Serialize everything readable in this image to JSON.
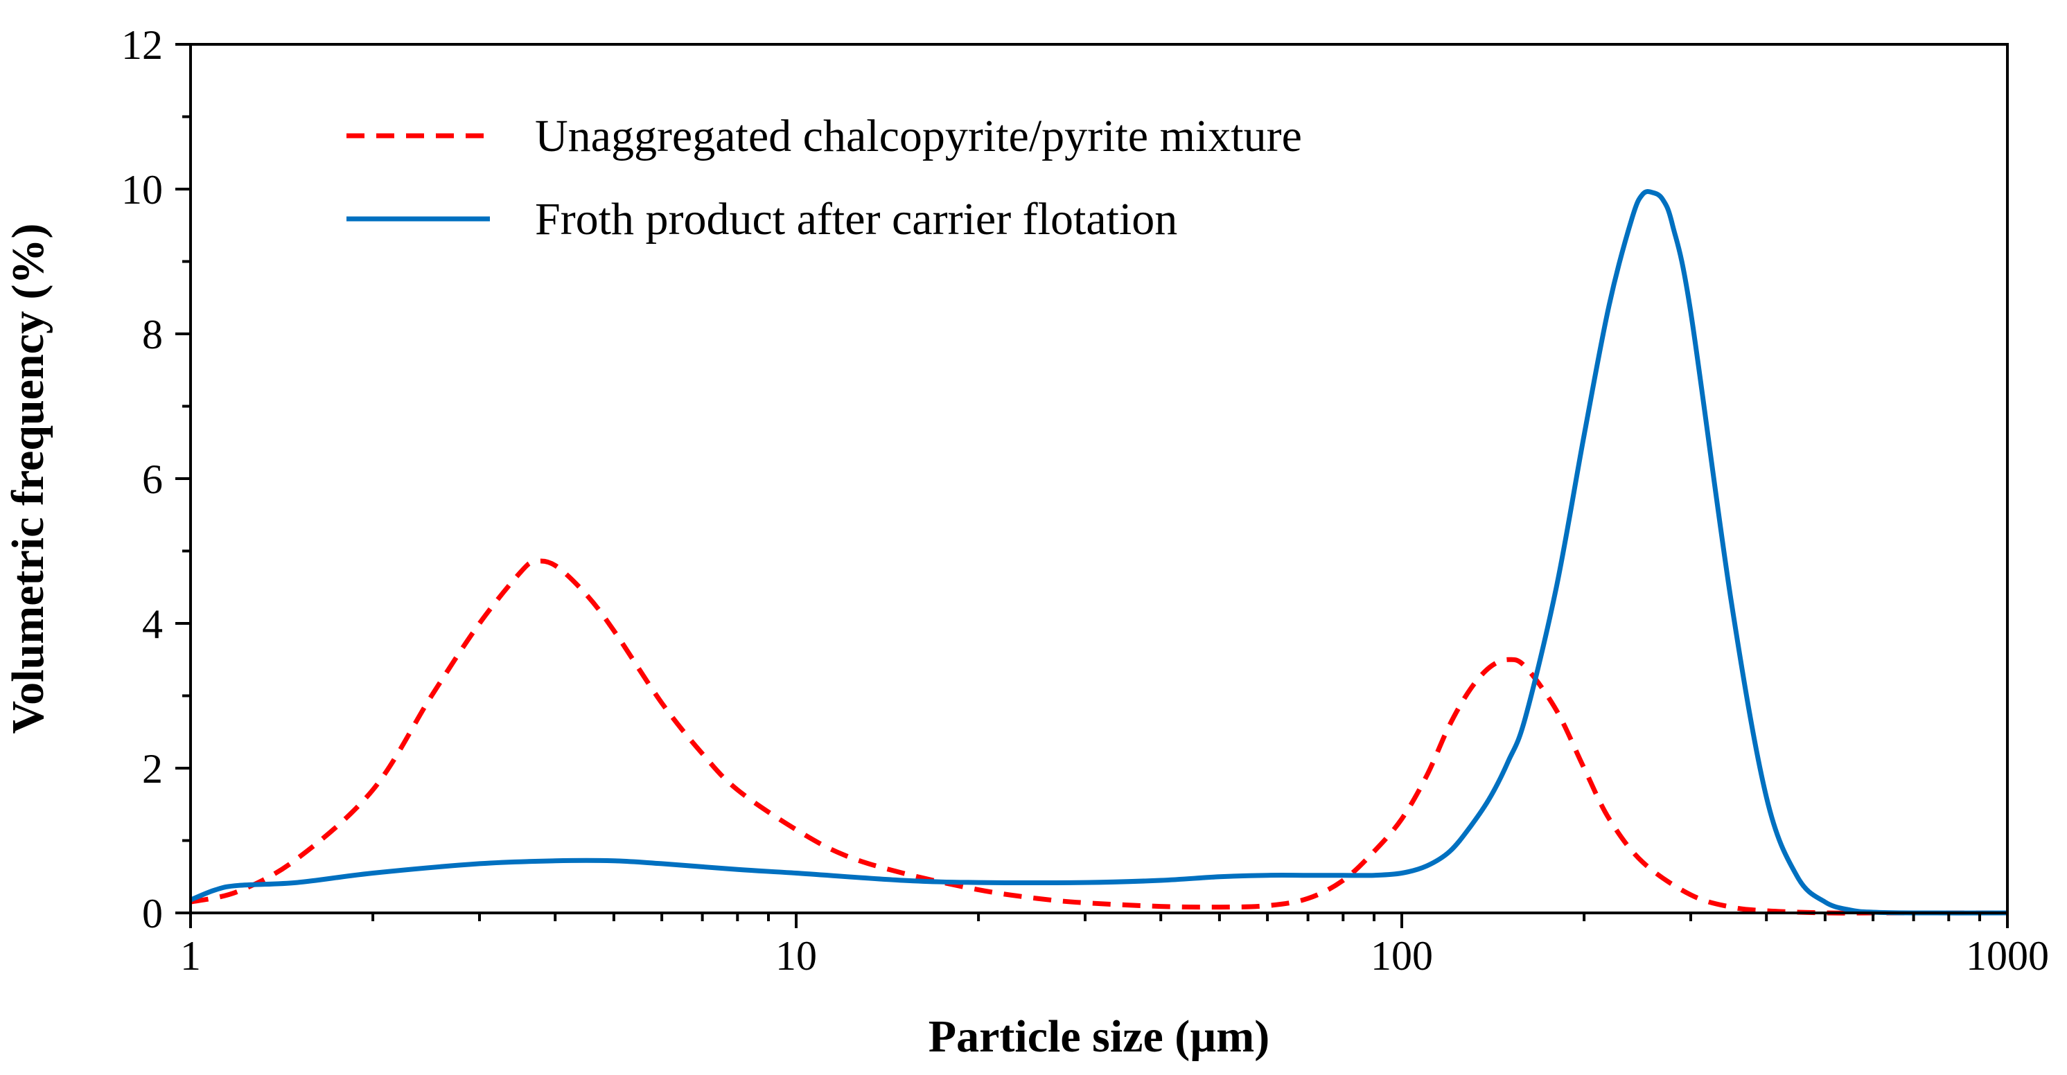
{
  "chart_data": {
    "type": "line",
    "xlabel": "Particle size (µm)",
    "ylabel": "Volumetric frequency (%)",
    "x_scale": "log",
    "xlim": [
      1,
      1000
    ],
    "ylim": [
      0,
      12
    ],
    "x_ticks": [
      1,
      10,
      100,
      1000
    ],
    "x_tick_labels": [
      "1",
      "10",
      "100",
      "1000"
    ],
    "y_ticks": [
      0,
      2,
      4,
      6,
      8,
      10,
      12
    ],
    "y_tick_labels": [
      "0",
      "2",
      "4",
      "6",
      "8",
      "10",
      "12"
    ],
    "grid": false,
    "legend_position": "top-left",
    "series": [
      {
        "name": "Unaggregated chalcopyrite/pyrite mixture",
        "color": "#ff0000",
        "style": "dashed",
        "x": [
          1,
          1.2,
          1.5,
          2,
          2.5,
          3,
          3.5,
          3.7,
          4,
          4.5,
          5,
          6,
          7,
          8,
          10,
          12,
          15,
          20,
          25,
          30,
          40,
          50,
          60,
          70,
          80,
          90,
          100,
          110,
          120,
          130,
          140,
          150,
          160,
          180,
          200,
          220,
          250,
          300,
          350,
          400,
          500,
          600,
          700,
          1000
        ],
        "y": [
          0.15,
          0.3,
          0.75,
          1.7,
          3.0,
          4.0,
          4.7,
          4.85,
          4.8,
          4.4,
          3.9,
          2.9,
          2.2,
          1.7,
          1.15,
          0.8,
          0.55,
          0.32,
          0.2,
          0.14,
          0.09,
          0.08,
          0.1,
          0.2,
          0.45,
          0.85,
          1.3,
          1.9,
          2.6,
          3.1,
          3.4,
          3.5,
          3.4,
          2.8,
          2.0,
          1.3,
          0.7,
          0.25,
          0.08,
          0.03,
          0.0,
          0.0,
          0.0,
          0.0
        ]
      },
      {
        "name": "Froth product after carrier flotation",
        "color": "#0070c0",
        "style": "solid",
        "x": [
          1,
          1.1,
          1.2,
          1.5,
          2,
          3,
          4,
          5,
          6,
          8,
          10,
          15,
          20,
          30,
          40,
          50,
          60,
          70,
          80,
          90,
          100,
          110,
          120,
          130,
          140,
          150,
          160,
          180,
          200,
          220,
          240,
          250,
          260,
          270,
          280,
          300,
          350,
          400,
          450,
          500,
          550,
          600,
          700,
          1000
        ],
        "y": [
          0.18,
          0.32,
          0.38,
          0.42,
          0.55,
          0.68,
          0.72,
          0.72,
          0.68,
          0.6,
          0.55,
          0.45,
          0.42,
          0.42,
          0.45,
          0.5,
          0.52,
          0.52,
          0.52,
          0.52,
          0.55,
          0.65,
          0.85,
          1.2,
          1.6,
          2.1,
          2.7,
          4.5,
          6.6,
          8.4,
          9.6,
          9.93,
          9.95,
          9.85,
          9.5,
          8.3,
          4.3,
          1.6,
          0.5,
          0.15,
          0.04,
          0.01,
          0.0,
          0.0
        ]
      }
    ]
  }
}
